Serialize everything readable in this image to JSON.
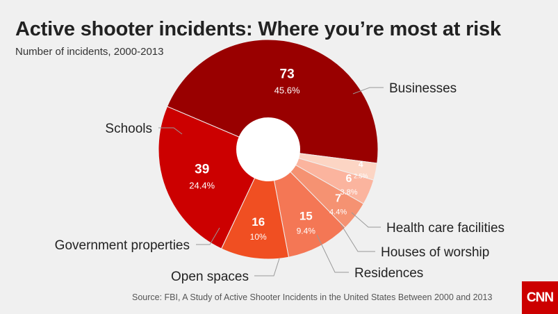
{
  "header": {
    "title": "Active shooter incidents: Where you’re most at risk",
    "subtitle": "Number of incidents, 2000-2013"
  },
  "footer": {
    "source": "Source: FBI, A Study of Active Shooter Incidents in the United States Between 2000 and 2013",
    "logo": "CNN"
  },
  "chart_data": {
    "type": "pie",
    "variant": "donut",
    "title": "Active shooter incidents: Where you’re most at risk",
    "subtitle": "Number of incidents, 2000-2013",
    "categories": [
      "Businesses",
      "Health care facilities",
      "Houses of worship",
      "Residences",
      "Open spaces",
      "Government properties",
      "Schools"
    ],
    "values": [
      73,
      4,
      6,
      7,
      15,
      16,
      39
    ],
    "percent_labels": [
      "45.6%",
      "2.5%",
      "3.8%",
      "4.4%",
      "9.4%",
      "10%",
      "24.4%"
    ],
    "colors": [
      "#990000",
      "#fcd5c4",
      "#fbb49e",
      "#f59272",
      "#f47755",
      "#f04f22",
      "#cc0000"
    ]
  }
}
